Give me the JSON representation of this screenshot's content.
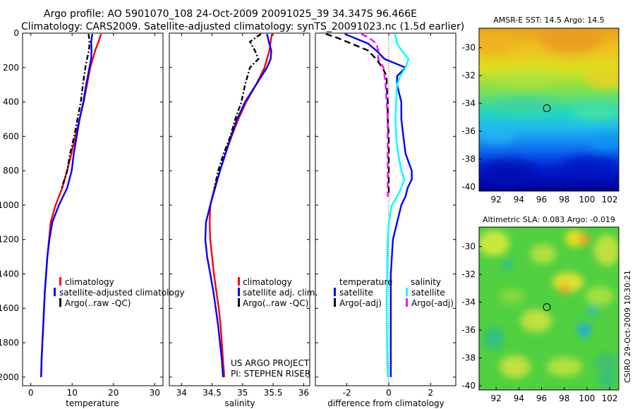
{
  "header": {
    "line1": "Argo profile: AO 5901070_108 24-Oct-2009 20091025_39 34.347S 96.466E",
    "line2": "Climatology: CARS2009. Satellite-adjusted climatology: synTS_20091023.nc (1.5d earlier)"
  },
  "credits": {
    "project": "US ARGO PROJECT",
    "pi": "PI: STEPHEN RISER",
    "stamp": "CSIRO 29-Oct-2009 10:30:21"
  },
  "colors": {
    "climatology": "#ff0000",
    "satellite": "#0000ff",
    "argo": "#000000",
    "satellite_diff_sal": "#00ffff",
    "argo_diff_sal": "#ff00ff"
  },
  "chart_data": [
    {
      "id": "temperature",
      "type": "line",
      "xlabel": "temperature",
      "ylabel": "",
      "xlim": [
        -2,
        32
      ],
      "ylim": [
        2050,
        0
      ],
      "xticks": [
        0,
        10,
        20,
        30
      ],
      "yticks": [
        0,
        200,
        400,
        600,
        800,
        1000,
        1200,
        1400,
        1600,
        1800,
        2000
      ],
      "depth": [
        5,
        50,
        100,
        150,
        200,
        300,
        400,
        500,
        600,
        700,
        800,
        900,
        1000,
        1100,
        1200,
        1300,
        1400,
        1500,
        1600,
        1700,
        1800,
        1900,
        2000
      ],
      "legend": [
        "climatology",
        "satellite-adjusted climatology",
        "Argo(..raw -QC)"
      ],
      "series": [
        {
          "name": "climatology",
          "color": "#ff0000",
          "dash": "",
          "values": [
            17.0,
            16.4,
            15.6,
            15.0,
            14.4,
            13.6,
            12.8,
            11.8,
            10.8,
            9.8,
            8.8,
            7.6,
            6.0,
            4.8,
            4.4,
            4.0,
            3.7,
            3.4,
            3.2,
            3.0,
            2.8,
            2.6,
            2.5
          ]
        },
        {
          "name": "satellite-adjusted climatology",
          "color": "#0000ff",
          "dash": "",
          "values": [
            14.9,
            14.6,
            14.7,
            14.6,
            14.2,
            13.4,
            12.7,
            11.8,
            11.1,
            10.4,
            9.9,
            8.8,
            6.8,
            5.2,
            4.5,
            4.0,
            3.7,
            3.4,
            3.2,
            3.0,
            2.8,
            2.6,
            2.5
          ]
        },
        {
          "name": "Argo(..raw -QC)",
          "color": "#000000",
          "dash": "7 3 2 3",
          "values": [
            14.0,
            14.2,
            14.1,
            13.6,
            13.2,
            12.6,
            12.1,
            11.3,
            10.5,
            9.5,
            8.8,
            7.5,
            null,
            null,
            null,
            null,
            null,
            null,
            null,
            null,
            null,
            null,
            null
          ]
        }
      ]
    },
    {
      "id": "salinity",
      "type": "line",
      "xlabel": "salinity",
      "ylabel": "",
      "xlim": [
        33.8,
        36.1
      ],
      "ylim": [
        2050,
        0
      ],
      "xticks": [
        34,
        34.5,
        35,
        35.5,
        36
      ],
      "depth": [
        5,
        50,
        100,
        150,
        200,
        300,
        400,
        500,
        600,
        700,
        800,
        900,
        1000,
        1100,
        1200,
        1300,
        1400,
        1500,
        1600,
        1700,
        1800,
        1900,
        2000
      ],
      "legend": [
        "climatology",
        "satellite adj. clim.",
        "Argo(..raw -QC)"
      ],
      "series": [
        {
          "name": "climatology",
          "color": "#ff0000",
          "dash": "",
          "values": [
            35.48,
            35.46,
            35.44,
            35.4,
            35.36,
            35.22,
            35.06,
            34.93,
            34.82,
            34.72,
            34.63,
            34.54,
            34.47,
            34.46,
            34.47,
            34.5,
            34.53,
            34.57,
            34.61,
            34.64,
            34.66,
            34.68,
            34.7
          ]
        },
        {
          "name": "satellite adj. clim.",
          "color": "#0000ff",
          "dash": "",
          "values": [
            35.4,
            35.43,
            35.47,
            35.46,
            35.4,
            35.22,
            35.04,
            34.91,
            34.81,
            34.72,
            34.63,
            34.55,
            34.47,
            34.4,
            34.39,
            34.42,
            34.47,
            34.52,
            34.56,
            34.6,
            34.63,
            34.66,
            34.68
          ]
        },
        {
          "name": "Argo(..raw -QC)",
          "color": "#000000",
          "dash": "7 3 2 3",
          "values": [
            35.3,
            35.12,
            35.2,
            35.26,
            35.12,
            35.04,
            34.98,
            34.88,
            34.8,
            34.69,
            34.6,
            34.54,
            null,
            null,
            null,
            null,
            null,
            null,
            null,
            null,
            null,
            null,
            null
          ]
        }
      ]
    },
    {
      "id": "difference",
      "type": "line",
      "xlabel": "difference from climatology",
      "ylabel": "",
      "xlim": [
        -3.5,
        3.2
      ],
      "ylim": [
        2050,
        0
      ],
      "xticks": [
        -2,
        0,
        2
      ],
      "depth": [
        5,
        30,
        60,
        100,
        150,
        200,
        250,
        300,
        400,
        500,
        600,
        700,
        800,
        850,
        900,
        950,
        1000,
        1100,
        1200,
        1400,
        1600,
        1800,
        2000
      ],
      "legend_titles": [
        "temperature",
        "salinity"
      ],
      "legend": [
        "satellite",
        "Argo(-adj)",
        "satellite",
        "Argo(-adj)"
      ],
      "series": [
        {
          "name": "temperature satellite",
          "color": "#0000ff",
          "dash": "",
          "values": [
            -2.1,
            -1.6,
            -1.0,
            -0.6,
            -0.2,
            0.8,
            0.4,
            0.4,
            0.6,
            0.6,
            0.7,
            0.8,
            1.1,
            1.1,
            0.9,
            0.8,
            0.6,
            0.4,
            0.2,
            0.1,
            0.1,
            0.1,
            0.1
          ]
        },
        {
          "name": "salinity satellite",
          "color": "#00ffff",
          "dash": "",
          "values": [
            0.3,
            0.35,
            0.4,
            0.6,
            0.95,
            0.8,
            0.55,
            0.4,
            0.35,
            0.32,
            0.35,
            0.45,
            0.6,
            0.75,
            0.6,
            0.4,
            0.15,
            0.0,
            -0.05,
            -0.08,
            -0.1,
            -0.08,
            -0.05
          ]
        },
        {
          "name": "temperature Argo(-adj)",
          "color": "#000000",
          "dash": "9 5",
          "values": [
            -3.0,
            -2.4,
            -1.8,
            -1.0,
            -0.6,
            -0.3,
            -0.1,
            -0.1,
            -0.05,
            -0.05,
            0.0,
            0.0,
            0.0,
            0.0,
            0.0,
            0.0,
            null,
            null,
            null,
            null,
            null,
            null,
            null
          ]
        },
        {
          "name": "salinity Argo(-adj)",
          "color": "#ff00ff",
          "dash": "9 5",
          "values": [
            -1.3,
            -0.9,
            -0.6,
            -0.5,
            -0.5,
            -0.25,
            -0.2,
            -0.15,
            -0.1,
            -0.05,
            -0.05,
            -0.05,
            -0.05,
            -0.05,
            -0.05,
            -0.05,
            null,
            null,
            null,
            null,
            null,
            null,
            null
          ]
        }
      ]
    },
    {
      "id": "sst_map",
      "type": "heatmap",
      "title": "AMSR-E SST: 14.5 Argo: 14.5",
      "xticks": [
        92,
        94,
        96,
        98,
        100,
        102
      ],
      "yticks": [
        -30,
        -32,
        -34,
        -36,
        -38,
        -40
      ],
      "xlim": [
        90.5,
        102.8
      ],
      "ylim": [
        -40.3,
        -28.6
      ],
      "marker": {
        "lon": 96.466,
        "lat": -34.347
      }
    },
    {
      "id": "sla_map",
      "type": "heatmap",
      "title": "Altimetric SLA: 0.083 Argo: -0.019",
      "xticks": [
        92,
        94,
        96,
        98,
        100,
        102
      ],
      "yticks": [
        -30,
        -32,
        -34,
        -36,
        -38,
        -40
      ],
      "xlim": [
        90.5,
        102.8
      ],
      "ylim": [
        -40.3,
        -28.6
      ],
      "marker": {
        "lon": 96.466,
        "lat": -34.347
      }
    }
  ]
}
